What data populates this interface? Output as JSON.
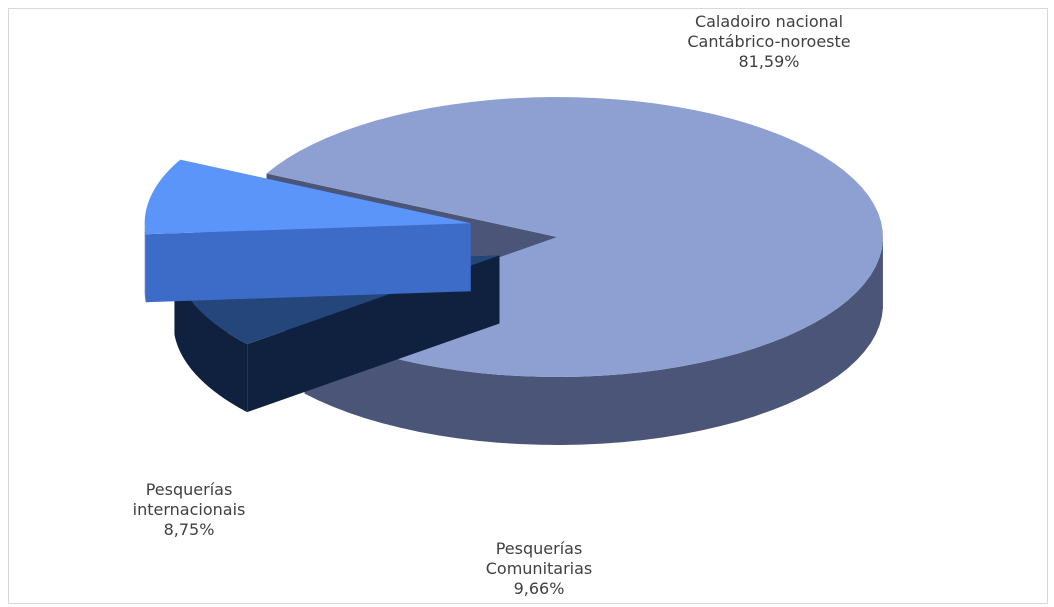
{
  "chart_data": {
    "type": "pie",
    "title": "",
    "slices": [
      {
        "name_lines": [
          "Caladoiro nacional",
          "Cantábrico-noroeste"
        ],
        "value": 81.59,
        "value_label": "81,59%",
        "color": "#8ea0d2",
        "side": "#4a5578"
      },
      {
        "name_lines": [
          "Pesquerías",
          "Comunitarias"
        ],
        "value": 9.66,
        "value_label": "9,66%",
        "color": "#24467a",
        "side": "#0f213f"
      },
      {
        "name_lines": [
          "Pesquerías",
          "internacionais"
        ],
        "value": 8.75,
        "value_label": "8,75%",
        "color": "#5b95f9",
        "side": "#3d6bc8"
      }
    ],
    "legend": "none",
    "labels": "outside"
  }
}
